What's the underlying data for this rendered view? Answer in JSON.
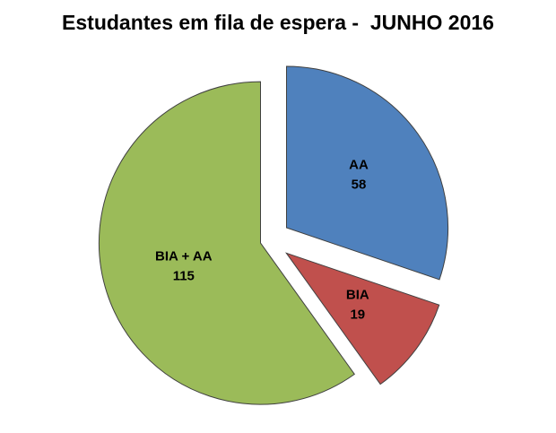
{
  "chart_data": {
    "type": "pie",
    "title": "Estudantes em fila de espera -  JUNHO 2016",
    "legend": "none",
    "start_angle_deg": 0,
    "direction": "clockwise",
    "data_labels": "category name and value inside slices",
    "background_color": "#ffffff",
    "title_color": "#000000",
    "label_color": "#000000",
    "slices": [
      {
        "label": "AA",
        "value": 58,
        "color": "#4F81BD",
        "explode": 24
      },
      {
        "label": "BIA",
        "value": 19,
        "color": "#C0504D",
        "explode": 24
      },
      {
        "label": "BIA + AA",
        "value": 115,
        "color": "#9BBB59",
        "explode": 10
      }
    ]
  }
}
